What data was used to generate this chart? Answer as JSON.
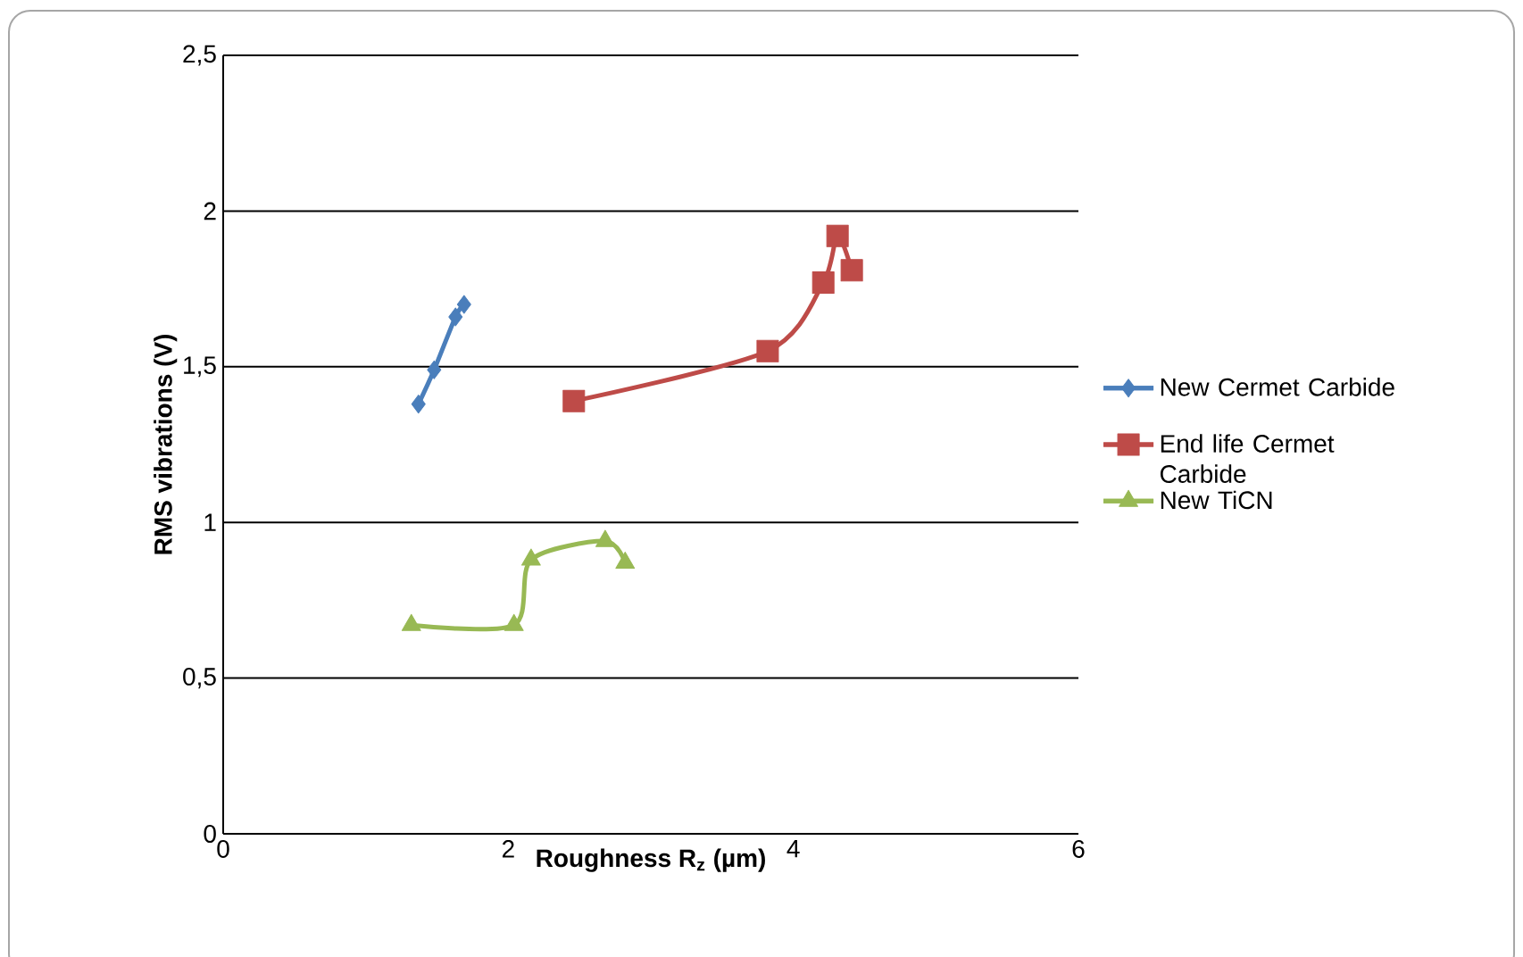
{
  "chart_data": {
    "type": "line",
    "xlabel": "Roughness R$_{z}$ (µm)",
    "ylabel": "RMS vibrations (V)",
    "xlim": [
      0,
      6
    ],
    "xticks": [
      0,
      2,
      4,
      6
    ],
    "ylim": [
      0,
      2.5
    ],
    "yticks": [
      0,
      {
        "value": 0.5,
        "label": "0,5"
      },
      1,
      {
        "value": 1.5,
        "label": "1,5"
      },
      2,
      {
        "value": 2.5,
        "label": "2,5"
      }
    ],
    "grid": "y",
    "legend": "right",
    "series": [
      {
        "name": "New Cermet Carbide",
        "color": "#4a7ebb",
        "marker": "diamond",
        "x": [
          1.37,
          1.48,
          1.63,
          1.69
        ],
        "values": [
          1.38,
          1.49,
          1.66,
          1.7
        ]
      },
      {
        "name": "End life Cermet Carbide",
        "color": "#be4b48",
        "marker": "square",
        "x": [
          2.46,
          3.82,
          4.21,
          4.31,
          4.41
        ],
        "values": [
          1.39,
          1.55,
          1.77,
          1.92,
          1.81
        ]
      },
      {
        "name": "New TiCN",
        "color": "#98b954",
        "marker": "triangle",
        "x": [
          1.32,
          2.04,
          2.16,
          2.68,
          2.82
        ],
        "values": [
          0.67,
          0.67,
          0.88,
          0.94,
          0.87
        ]
      }
    ]
  }
}
